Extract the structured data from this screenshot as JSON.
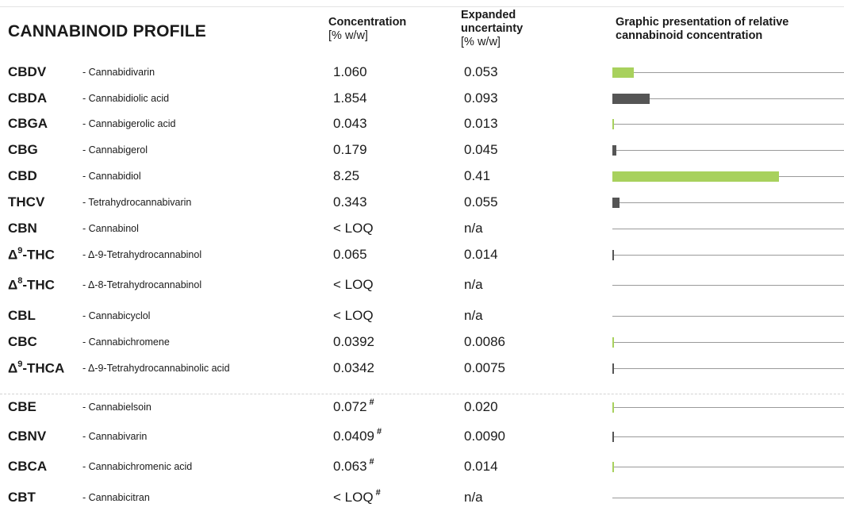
{
  "title": "CANNABINOID PROFILE",
  "headers": {
    "concentration": [
      "Concentration",
      "[% w/w]"
    ],
    "uncertainty": [
      "Expanded",
      "uncertainty",
      "[% w/w]"
    ],
    "graphic": [
      "Graphic presentation of relative",
      "cannabinoid concentration"
    ]
  },
  "colors": {
    "green": "#a8d15d",
    "gray": "#555555",
    "track": "#9a9a9a"
  },
  "rows": [
    {
      "abbr": "CBDV",
      "sup": "",
      "abbr_suffix": "",
      "name": "- Cannabidivarin",
      "conc": "1.060",
      "hash": "",
      "unc": "0.053",
      "bar": "green",
      "value": 1.06
    },
    {
      "abbr": "CBDA",
      "sup": "",
      "abbr_suffix": "",
      "name": "- Cannabidiolic acid",
      "conc": "1.854",
      "hash": "",
      "unc": "0.093",
      "bar": "gray",
      "value": 1.854
    },
    {
      "abbr": "CBGA",
      "sup": "",
      "abbr_suffix": "",
      "name": "- Cannabigerolic acid",
      "conc": "0.043",
      "hash": "",
      "unc": "0.013",
      "bar": "green",
      "value": 0.043
    },
    {
      "abbr": "CBG",
      "sup": "",
      "abbr_suffix": "",
      "name": "- Cannabigerol",
      "conc": "0.179",
      "hash": "",
      "unc": "0.045",
      "bar": "gray",
      "value": 0.179
    },
    {
      "abbr": "CBD",
      "sup": "",
      "abbr_suffix": "",
      "name": "- Cannabidiol",
      "conc": "8.25",
      "hash": "",
      "unc": "0.41",
      "bar": "green",
      "value": 8.25
    },
    {
      "abbr": "THCV",
      "sup": "",
      "abbr_suffix": "",
      "name": "- Tetrahydrocannabivarin",
      "conc": "0.343",
      "hash": "",
      "unc": "0.055",
      "bar": "gray",
      "value": 0.343
    },
    {
      "abbr": "CBN",
      "sup": "",
      "abbr_suffix": "",
      "name": "- Cannabinol",
      "conc": "< LOQ",
      "hash": "",
      "unc": "n/a",
      "bar": "none",
      "value": 0
    },
    {
      "abbr": "Δ",
      "sup": "9",
      "abbr_suffix": "-THC",
      "name": "- Δ-9-Tetrahydrocannabinol",
      "conc": "0.065",
      "hash": "",
      "unc": "0.014",
      "bar": "gray",
      "value": 0.065
    },
    {
      "abbr": "Δ",
      "sup": "8",
      "abbr_suffix": "-THC",
      "name": "- Δ-8-Tetrahydrocannabinol",
      "conc": "< LOQ",
      "hash": "",
      "unc": "n/a",
      "bar": "none",
      "value": 0
    },
    {
      "abbr": "CBL",
      "sup": "",
      "abbr_suffix": "",
      "name": "- Cannabicyclol",
      "conc": "< LOQ",
      "hash": "",
      "unc": "n/a",
      "bar": "none",
      "value": 0
    },
    {
      "abbr": "CBC",
      "sup": "",
      "abbr_suffix": "",
      "name": "- Cannabichromene",
      "conc": "0.0392",
      "hash": "",
      "unc": "0.0086",
      "bar": "green",
      "value": 0.0392
    },
    {
      "abbr": "Δ",
      "sup": "9",
      "abbr_suffix": "-THCA",
      "name": "- Δ-9-Tetrahydrocannabinolic acid",
      "conc": "0.0342",
      "hash": "",
      "unc": "0.0075",
      "bar": "gray",
      "value": 0.0342
    },
    {
      "abbr": "CBE",
      "sup": "",
      "abbr_suffix": "",
      "name": "- Cannabielsoin",
      "conc": "0.072",
      "hash": "#",
      "unc": "0.020",
      "bar": "green",
      "value": 0.072
    },
    {
      "abbr": "CBNV",
      "sup": "",
      "abbr_suffix": "",
      "name": "- Cannabivarin",
      "conc": "0.0409",
      "hash": "#",
      "unc": "0.0090",
      "bar": "gray",
      "value": 0.0409
    },
    {
      "abbr": "CBCA",
      "sup": "",
      "abbr_suffix": "",
      "name": "- Cannabichromenic acid",
      "conc": "0.063",
      "hash": "#",
      "unc": "0.014",
      "bar": "green",
      "value": 0.063
    },
    {
      "abbr": "CBT",
      "sup": "",
      "abbr_suffix": "",
      "name": "- Cannabicitran",
      "conc": "< LOQ",
      "hash": "#",
      "unc": "n/a",
      "bar": "none",
      "value": 0
    }
  ]
}
